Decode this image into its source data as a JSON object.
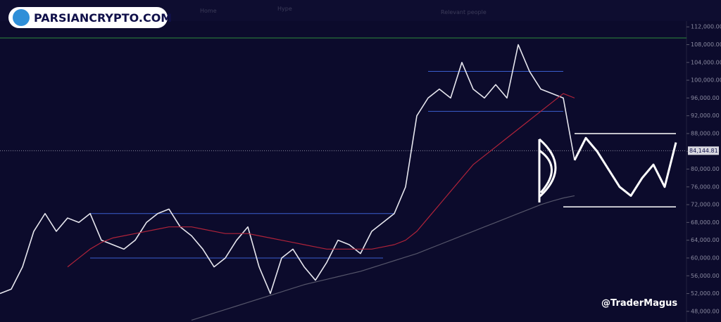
{
  "nav": {
    "items": [
      "Home",
      "Hype",
      "Relevant people"
    ]
  },
  "watermark": "PARSIANCRYPTO.COM",
  "author": "@TraderMagus",
  "chart_data": {
    "type": "line",
    "ylim": [
      45600,
      113300
    ],
    "yticks": [
      {
        "value": 48000,
        "label": "48,000.00"
      },
      {
        "value": 52000,
        "label": "52,000.00"
      },
      {
        "value": 56000,
        "label": "56,000.00"
      },
      {
        "value": 60000,
        "label": "60,000.00"
      },
      {
        "value": 64000,
        "label": "64,000.00"
      },
      {
        "value": 68000,
        "label": "68,000.00"
      },
      {
        "value": 72000,
        "label": "72,000.00"
      },
      {
        "value": 76000,
        "label": "76,000.00"
      },
      {
        "value": 80000,
        "label": "80,000.00"
      },
      {
        "value": 84000,
        "label": "84,000.00"
      },
      {
        "value": 88000,
        "label": "88,000.00"
      },
      {
        "value": 92000,
        "label": "92,000.00"
      },
      {
        "value": 96000,
        "label": "96,000.00"
      },
      {
        "value": 100000,
        "label": "100,000.00"
      },
      {
        "value": 104000,
        "label": "104,000.00"
      },
      {
        "value": 108000,
        "label": "108,000.00"
      },
      {
        "value": 112000,
        "label": "112,000.00"
      }
    ],
    "current_price": {
      "value": 84144.81,
      "label": "84,144.81"
    },
    "series": [
      {
        "color": "#e6e6ee",
        "width": 1.6,
        "values": [
          52000,
          53000,
          58000,
          66000,
          70000,
          66000,
          69000,
          68000,
          70000,
          64000,
          63000,
          62000,
          64000,
          68000,
          70000,
          71000,
          67000,
          65000,
          62000,
          58000,
          60000,
          64000,
          67000,
          58000,
          52000,
          60000,
          62000,
          58000,
          55000,
          59000,
          64000,
          63000,
          61000,
          66000,
          68000,
          70000,
          76000,
          92000,
          96000,
          98000,
          96000,
          104000,
          98000,
          96000,
          99000,
          96000,
          108000,
          102000,
          98000,
          97000,
          96000,
          82000,
          null,
          null,
          null,
          null,
          null,
          null,
          null,
          null,
          null
        ]
      },
      {
        "color": "#b0233a",
        "width": 1.2,
        "values": [
          null,
          null,
          null,
          null,
          null,
          null,
          58000,
          60000,
          62000,
          63500,
          64500,
          65000,
          65500,
          66000,
          66500,
          67000,
          67000,
          67000,
          66500,
          66000,
          65500,
          65500,
          65500,
          65000,
          64500,
          64000,
          63500,
          63000,
          62500,
          62000,
          62000,
          62000,
          62000,
          62000,
          62500,
          63000,
          64000,
          66000,
          69000,
          72000,
          75000,
          78000,
          81000,
          83000,
          85000,
          87000,
          89000,
          91000,
          93000,
          95000,
          97000,
          96000,
          null,
          null,
          null,
          null,
          null,
          null,
          null,
          null,
          null
        ]
      },
      {
        "color": "#55556a",
        "width": 1.2,
        "values": [
          null,
          null,
          null,
          null,
          null,
          null,
          null,
          null,
          null,
          null,
          null,
          null,
          null,
          null,
          null,
          null,
          null,
          46000,
          46800,
          47600,
          48400,
          49200,
          50000,
          50800,
          51600,
          52400,
          53200,
          54000,
          54600,
          55200,
          55800,
          56400,
          57000,
          57800,
          58600,
          59400,
          60200,
          61000,
          62000,
          63000,
          64000,
          65000,
          66000,
          67000,
          68000,
          69000,
          70000,
          71000,
          72000,
          72800,
          73500,
          74000,
          null,
          null,
          null,
          null,
          null,
          null,
          null,
          null,
          null
        ]
      },
      {
        "color": "#ffffff",
        "width": 3,
        "values": [
          null,
          null,
          null,
          null,
          null,
          null,
          null,
          null,
          null,
          null,
          null,
          null,
          null,
          null,
          null,
          null,
          null,
          null,
          null,
          null,
          null,
          null,
          null,
          null,
          null,
          null,
          null,
          null,
          null,
          null,
          null,
          null,
          null,
          null,
          null,
          null,
          null,
          null,
          null,
          null,
          null,
          null,
          null,
          null,
          null,
          null,
          null,
          null,
          null,
          null,
          null,
          82000,
          87000,
          84000,
          80000,
          76000,
          74000,
          78000,
          81000,
          76000,
          86000
        ]
      }
    ],
    "levels": [
      {
        "value": 109500,
        "from": 0,
        "to": 60,
        "color": "#2e8b3c"
      },
      {
        "value": 70000,
        "from": 8,
        "to": 35,
        "color": "#3a5fcf"
      },
      {
        "value": 60000,
        "from": 8,
        "to": 34,
        "color": "#3a5fcf"
      },
      {
        "value": 102000,
        "from": 38,
        "to": 50,
        "color": "#3a5fcf"
      },
      {
        "value": 93000,
        "from": 38,
        "to": 50,
        "color": "#3a5fcf"
      },
      {
        "value": 88000,
        "from": 51,
        "to": 60,
        "color": "#ffffff"
      },
      {
        "value": 71500,
        "from": 50,
        "to": 60,
        "color": "#ffffff"
      }
    ]
  }
}
